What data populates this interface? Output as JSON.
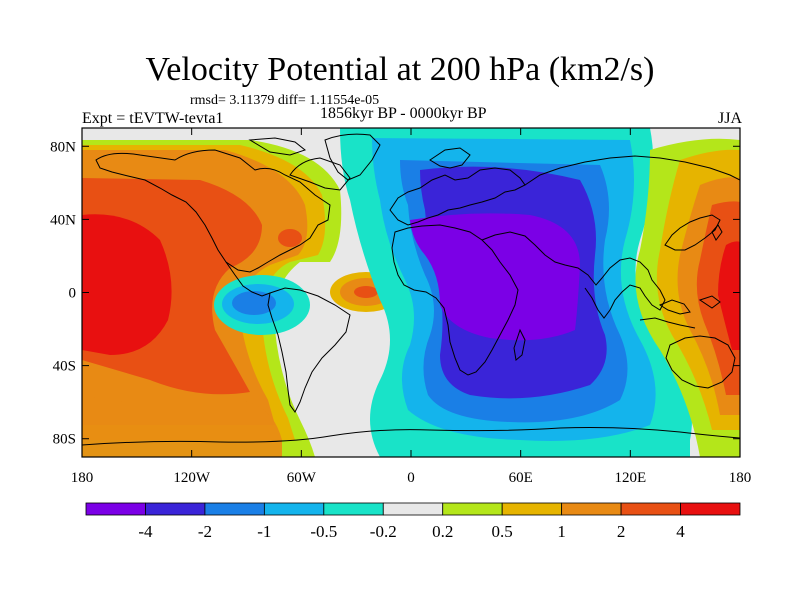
{
  "title": "Velocity Potential at 200 hPa (km2/s)",
  "stats": "rmsd= 3.11379 diff= 1.11554e-05",
  "experiment": "Expt = tEVTW-tevta1",
  "period": "1856kyr BP - 0000kyr BP",
  "season": "JJA",
  "map": {
    "lon_range": [
      -180,
      180
    ],
    "lat_range": [
      -90,
      90
    ],
    "lon_ticks": [
      {
        "value": -180,
        "label": "180"
      },
      {
        "value": -120,
        "label": "120W"
      },
      {
        "value": -60,
        "label": "60W"
      },
      {
        "value": 0,
        "label": "0"
      },
      {
        "value": 60,
        "label": "60E"
      },
      {
        "value": 120,
        "label": "120E"
      },
      {
        "value": 180,
        "label": "180"
      }
    ],
    "lat_ticks": [
      {
        "value": 80,
        "label": "80N"
      },
      {
        "value": 40,
        "label": "40N"
      },
      {
        "value": 0,
        "label": "0"
      },
      {
        "value": -40,
        "label": "40S"
      },
      {
        "value": -80,
        "label": "80S"
      }
    ]
  },
  "colorbar": {
    "colors": [
      "#7b00e6",
      "#3a24d8",
      "#1a7fe6",
      "#14b4ec",
      "#19e3c8",
      "#e8e8e8",
      "#b4e61a",
      "#e6b400",
      "#e88a14",
      "#e85014",
      "#e81010"
    ],
    "labels": [
      "-4",
      "-2",
      "-1",
      "-0.5",
      "-0.2",
      "0.2",
      "0.5",
      "1",
      "2",
      "4"
    ]
  }
}
